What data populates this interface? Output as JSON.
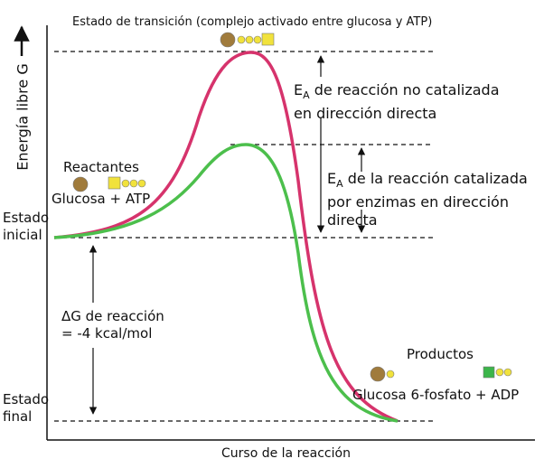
{
  "title": "Estado de transición (complejo activado entre glucosa y ATP)",
  "y_axis_label": "Energía libre G",
  "x_axis_label": "Curso de la reacción",
  "reactants": {
    "heading": "Reactantes",
    "formula": "Glucosa + ATP"
  },
  "initial_state": "Estado inicial",
  "final_state": "Estado final",
  "delta_g": {
    "line1": "ΔG de reacción",
    "line2": "= -4 kcal/mol"
  },
  "ea_uncatalyzed": {
    "symbol": "E",
    "subscript": "A",
    "text": "de reacción no catalizada en dirección directa"
  },
  "ea_catalyzed": {
    "symbol": "E",
    "subscript": "A",
    "text": "de la reacción catalizada por enzimas en dirección directa"
  },
  "products": {
    "heading": "Productos",
    "formula": "Glucosa 6-fosfato + ADP"
  }
}
